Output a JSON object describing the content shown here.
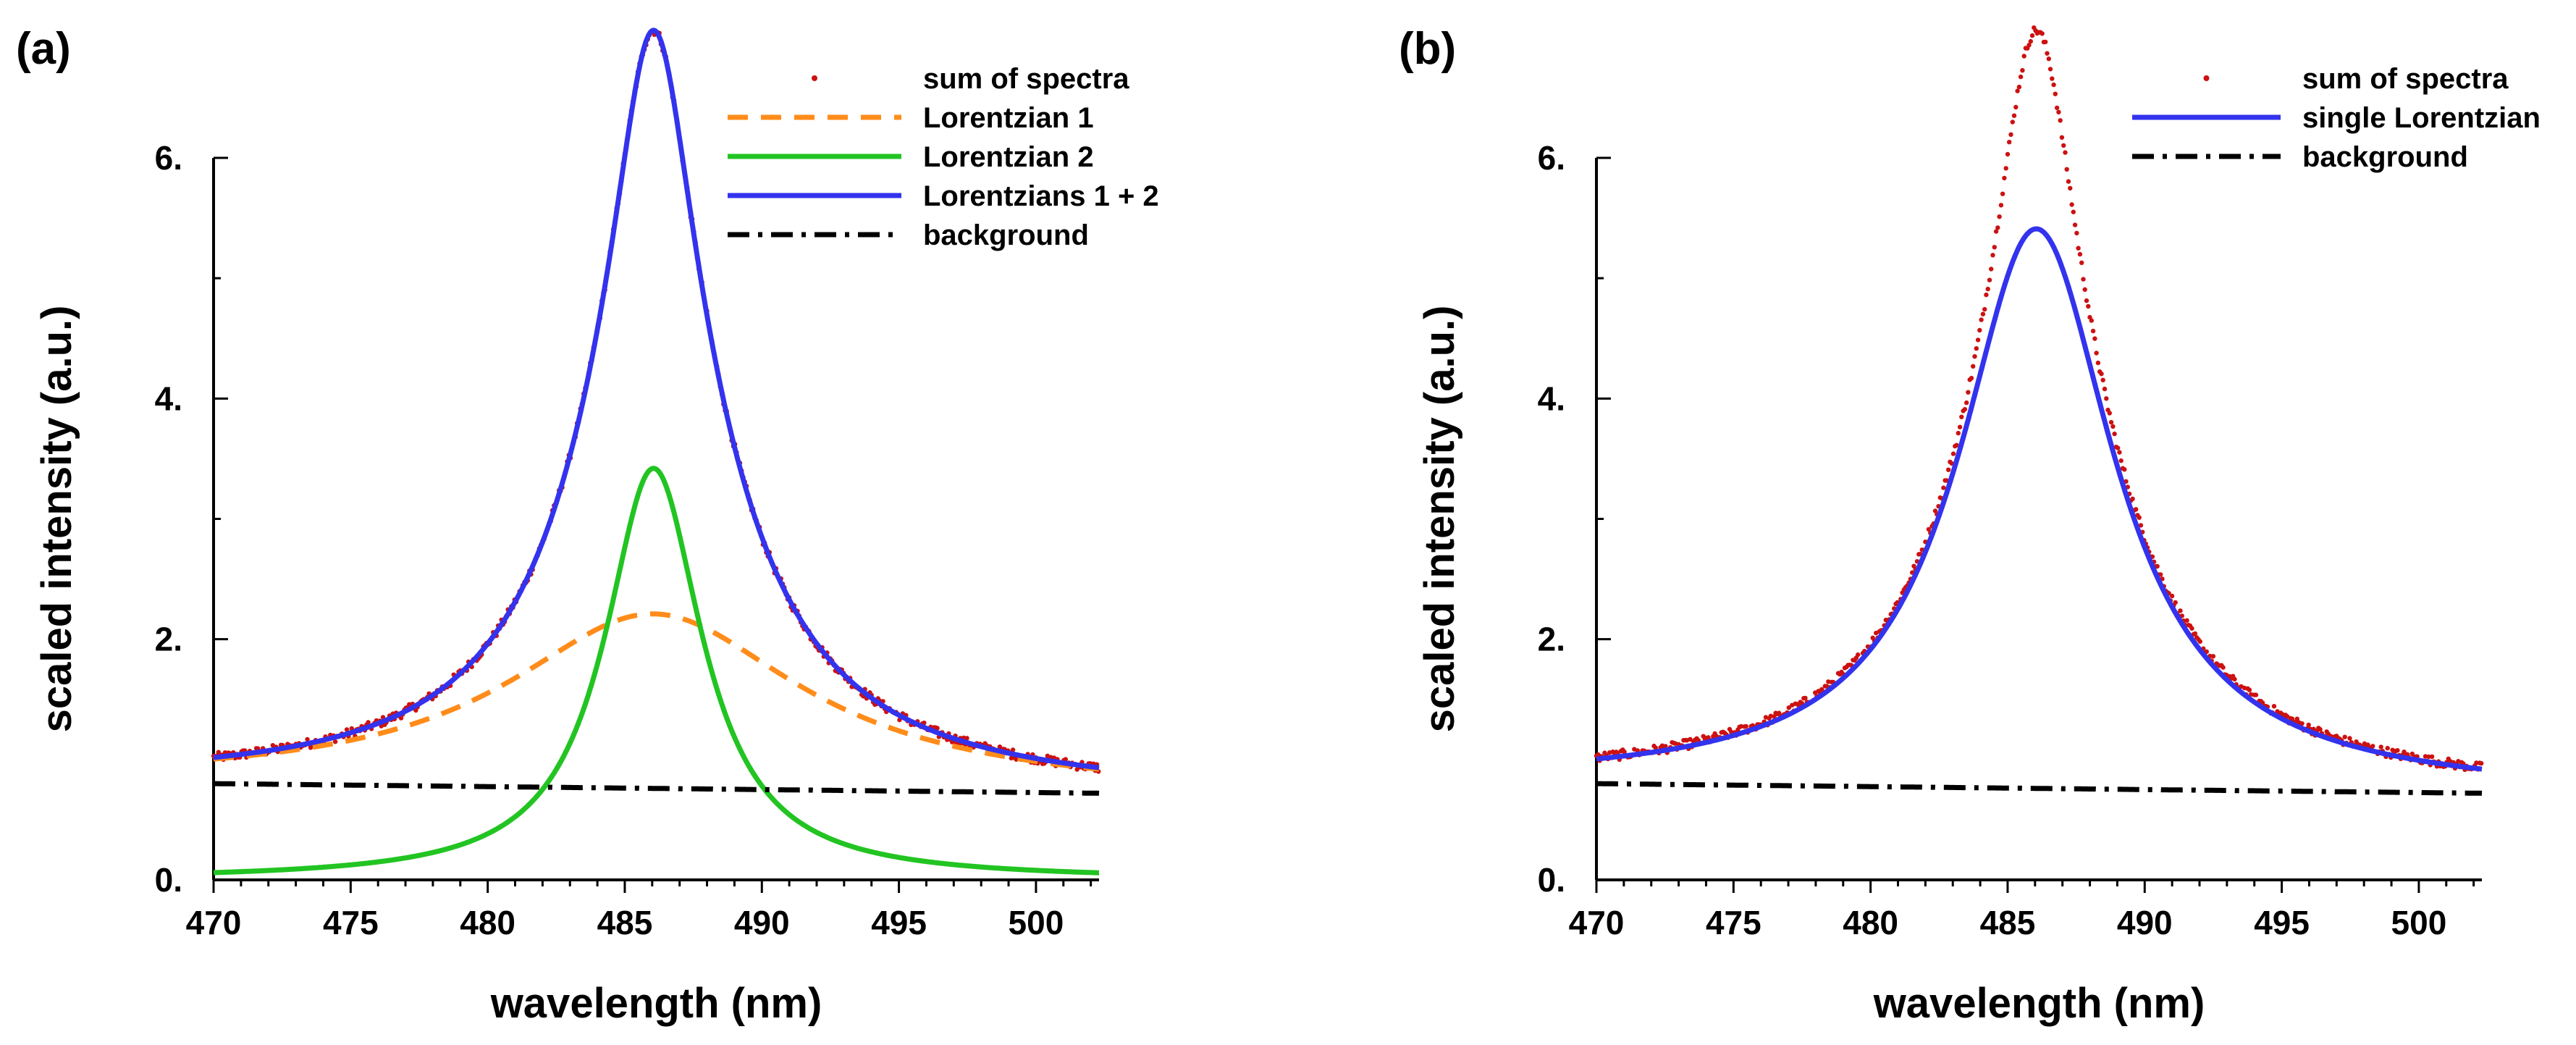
{
  "chart_data": [
    {
      "type": "line",
      "panel_label": "(a)",
      "xlabel": "wavelength (nm)",
      "ylabel": "scaled intensity (a.u.)",
      "xlim": [
        470,
        502.3
      ],
      "ylim": [
        0,
        6
      ],
      "x_ticks": [
        470,
        475,
        480,
        485,
        490,
        495,
        500
      ],
      "x_tick_labels": [
        "470",
        "475",
        "480",
        "485",
        "490",
        "495",
        "500"
      ],
      "y_ticks": [
        0,
        2,
        4,
        6
      ],
      "y_tick_labels": [
        "0.",
        "2.",
        "4.",
        "6."
      ],
      "legend_position": "top-right",
      "series": [
        {
          "name": "sum of  spectra",
          "style": "dots",
          "color": "#cc1111",
          "kind": "data",
          "model": {
            "c": 486.05,
            "w": 7.8,
            "a": 3.3,
            "c2": 486.05,
            "w2": 3.4,
            "a2": 3.0,
            "bg0": 0.8,
            "bg1": 0.72,
            "noise": 0.04
          }
        },
        {
          "name": "Lorentzian 1",
          "style": "dashed",
          "color": "#ff8c1a",
          "kind": "lorentzian_plus_bg",
          "model": {
            "c": 486.05,
            "w": 13.0,
            "a": 1.45,
            "bg0": 0.8,
            "bg1": 0.72
          }
        },
        {
          "name": "Lorentzian 2",
          "style": "solid",
          "color": "#22c422",
          "kind": "lorentzian",
          "model": {
            "c": 486.05,
            "w": 4.3,
            "a": 3.42
          }
        },
        {
          "name": "Lorentzians 1 + 2",
          "style": "solid",
          "color": "#3333ee",
          "kind": "sum",
          "model": {
            "c": 486.05,
            "w": 7.8,
            "a": 3.3,
            "c2": 486.05,
            "w2": 3.4,
            "a2": 3.0,
            "bg0": 0.8,
            "bg1": 0.72
          }
        },
        {
          "name": "background",
          "style": "dashdot",
          "color": "#000000",
          "kind": "linear",
          "model": {
            "bg0": 0.8,
            "bg1": 0.72
          }
        }
      ]
    },
    {
      "type": "line",
      "panel_label": "(b)",
      "xlabel": "wavelength (nm)",
      "ylabel": "scaled intensity (a.u.)",
      "xlim": [
        470,
        502.3
      ],
      "ylim": [
        0,
        6
      ],
      "x_ticks": [
        470,
        475,
        480,
        485,
        490,
        495,
        500
      ],
      "x_tick_labels": [
        "470",
        "475",
        "480",
        "485",
        "490",
        "495",
        "500"
      ],
      "y_ticks": [
        0,
        2,
        4,
        6
      ],
      "y_tick_labels": [
        "0.",
        "2.",
        "4.",
        "6."
      ],
      "legend_position": "top-right",
      "series": [
        {
          "name": "sum of  spectra",
          "style": "dots",
          "color": "#cc1111",
          "kind": "data",
          "model": {
            "c": 486.05,
            "w": 7.8,
            "a": 3.3,
            "c2": 486.05,
            "w2": 3.4,
            "a2": 3.0,
            "bg0": 0.8,
            "bg1": 0.72,
            "noise": 0.04
          }
        },
        {
          "name": "single Lorentzian",
          "style": "solid",
          "color": "#3333ee",
          "kind": "lorentzian_plus_bg",
          "model": {
            "c": 486.05,
            "w": 6.9,
            "a": 4.65,
            "bg0": 0.8,
            "bg1": 0.72
          }
        },
        {
          "name": "background",
          "style": "dashdot",
          "color": "#000000",
          "kind": "linear",
          "model": {
            "bg0": 0.8,
            "bg1": 0.72
          }
        }
      ]
    }
  ]
}
